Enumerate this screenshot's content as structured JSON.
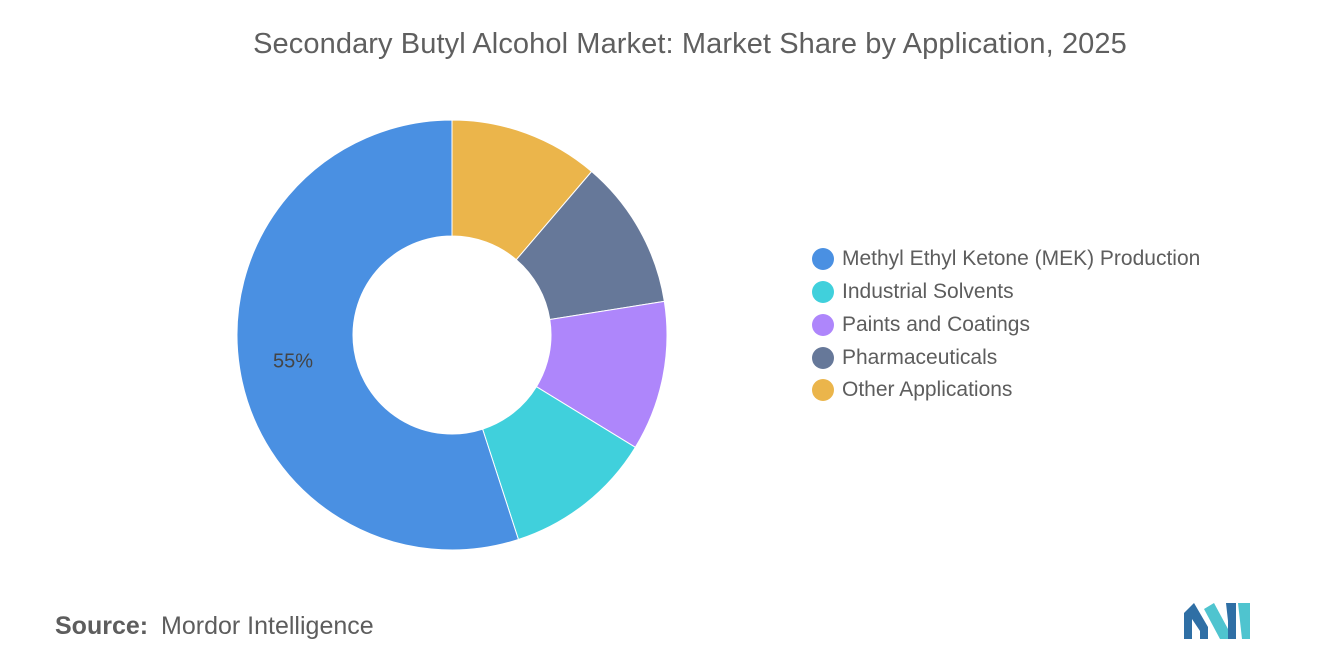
{
  "chart_data": {
    "type": "pie",
    "donut": true,
    "title": "Secondary Butyl Alcohol Market: Market Share by Application, 2025",
    "categories": [
      "Methyl Ethyl Ketone (MEK) Production",
      "Industrial Solvents",
      "Paints and Coatings",
      "Pharmaceuticals",
      "Other Applications"
    ],
    "values": [
      55,
      11.25,
      11.25,
      11.25,
      11.25
    ],
    "colors": [
      "#4a90e2",
      "#40d0dc",
      "#ae86fb",
      "#667899",
      "#ebb54b"
    ],
    "data_labels": [
      "55%",
      "",
      "",
      "",
      ""
    ],
    "legend_position": "right"
  },
  "source": {
    "label": "Source:",
    "value": "Mordor Intelligence"
  },
  "logo": {
    "icon": "mordor-intelligence-logo-icon",
    "colors": [
      "#2f6fa5",
      "#4fc4cf"
    ]
  }
}
